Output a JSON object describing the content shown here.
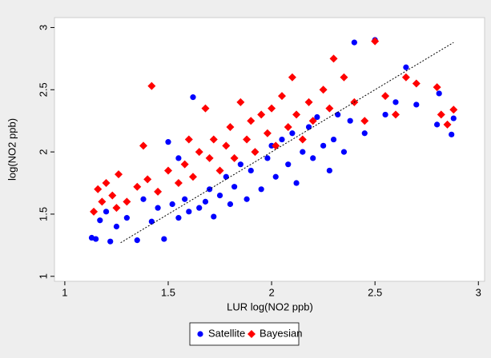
{
  "chart_data": {
    "type": "scatter",
    "xlabel": "LUR log(NO2 ppb)",
    "ylabel": "log(NO2 ppb)",
    "xlim": [
      0.95,
      3.03
    ],
    "ylim": [
      0.96,
      3.08
    ],
    "xticks": [
      1,
      1.5,
      2,
      2.5,
      3
    ],
    "yticks": [
      1,
      1.5,
      2,
      2.5,
      3
    ],
    "legend": "bottom",
    "series": [
      {
        "name": "Satellite",
        "color": "#0000ff",
        "marker": "circle",
        "x": [
          1.13,
          1.15,
          1.17,
          1.2,
          1.22,
          1.25,
          1.3,
          1.35,
          1.38,
          1.42,
          1.45,
          1.48,
          1.52,
          1.55,
          1.58,
          1.6,
          1.62,
          1.65,
          1.68,
          1.7,
          1.72,
          1.75,
          1.78,
          1.8,
          1.82,
          1.85,
          1.88,
          1.9,
          1.92,
          1.95,
          1.98,
          2.0,
          2.02,
          2.05,
          2.08,
          2.1,
          2.12,
          2.15,
          2.18,
          2.2,
          2.22,
          2.25,
          2.28,
          2.3,
          2.32,
          2.35,
          2.38,
          2.4,
          2.45,
          2.5,
          2.55,
          2.6,
          2.65,
          2.7,
          2.8,
          2.81,
          2.87,
          2.88,
          1.55,
          1.5
        ],
        "values": [
          1.31,
          1.3,
          1.45,
          1.52,
          1.28,
          1.4,
          1.47,
          1.29,
          1.62,
          1.44,
          1.55,
          1.3,
          1.58,
          1.47,
          1.62,
          1.52,
          2.44,
          1.55,
          1.6,
          1.7,
          1.48,
          1.65,
          1.8,
          1.58,
          1.72,
          1.9,
          1.62,
          1.85,
          2.0,
          1.7,
          1.95,
          2.05,
          1.8,
          2.1,
          1.9,
          2.15,
          1.75,
          2.0,
          2.2,
          1.95,
          2.28,
          2.05,
          1.85,
          2.1,
          2.3,
          2.0,
          2.25,
          2.88,
          2.15,
          2.9,
          2.3,
          2.4,
          2.68,
          2.38,
          2.22,
          2.47,
          2.14,
          2.27,
          1.95,
          2.08
        ]
      },
      {
        "name": "Bayesian",
        "color": "#ff0000",
        "marker": "diamond",
        "x": [
          1.14,
          1.16,
          1.18,
          1.2,
          1.23,
          1.26,
          1.3,
          1.35,
          1.4,
          1.42,
          1.45,
          1.5,
          1.55,
          1.58,
          1.6,
          1.62,
          1.65,
          1.68,
          1.7,
          1.72,
          1.75,
          1.78,
          1.8,
          1.82,
          1.85,
          1.88,
          1.9,
          1.92,
          1.95,
          1.98,
          2.0,
          2.02,
          2.05,
          2.08,
          2.1,
          2.12,
          2.15,
          2.18,
          2.2,
          2.25,
          2.28,
          2.3,
          2.35,
          2.4,
          2.45,
          2.5,
          2.55,
          2.6,
          2.65,
          2.7,
          2.8,
          2.82,
          2.85,
          2.88,
          1.38,
          1.25
        ],
        "values": [
          1.52,
          1.7,
          1.6,
          1.75,
          1.65,
          1.82,
          1.6,
          1.72,
          1.78,
          2.53,
          1.68,
          1.85,
          1.75,
          1.9,
          2.1,
          1.8,
          2.0,
          2.35,
          1.95,
          2.1,
          1.85,
          2.05,
          2.2,
          1.95,
          2.4,
          2.1,
          2.25,
          2.0,
          2.3,
          2.15,
          2.35,
          2.05,
          2.45,
          2.2,
          2.6,
          2.3,
          2.1,
          2.4,
          2.25,
          2.5,
          2.35,
          2.75,
          2.6,
          2.4,
          2.25,
          2.89,
          2.45,
          2.3,
          2.6,
          2.55,
          2.52,
          2.3,
          2.22,
          2.34,
          2.05,
          1.55
        ]
      }
    ],
    "reference_line": {
      "x": [
        1.27,
        2.88
      ],
      "y": [
        1.27,
        2.88
      ]
    }
  }
}
